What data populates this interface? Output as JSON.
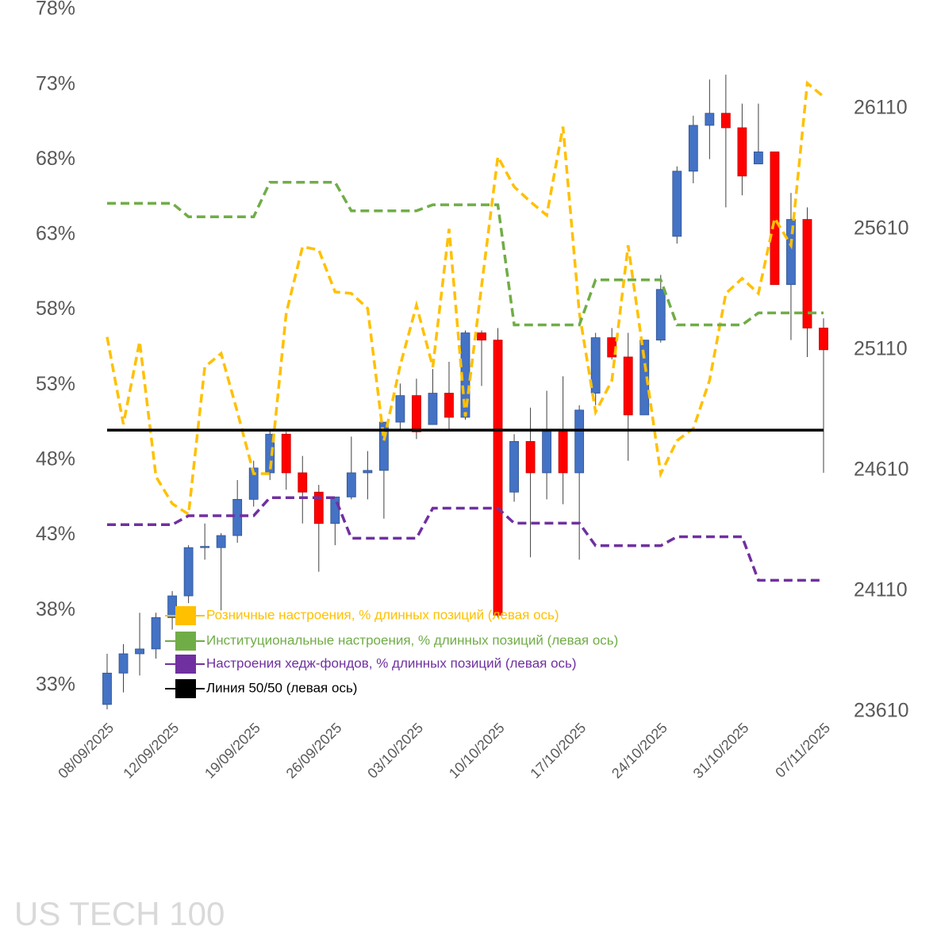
{
  "chart_data": {
    "type": "candlestick",
    "watermark": "US TECH 100",
    "categories": [
      "08/09/2025",
      null,
      null,
      null,
      "12/09/2025",
      null,
      null,
      null,
      null,
      "19/09/2025",
      null,
      null,
      null,
      null,
      "26/09/2025",
      null,
      null,
      null,
      null,
      "03/10/2025",
      null,
      null,
      null,
      null,
      "10/10/2025",
      null,
      null,
      null,
      null,
      "17/10/2025",
      null,
      null,
      null,
      null,
      "24/10/2025",
      null,
      null,
      null,
      null,
      "31/10/2025",
      null,
      null,
      null,
      null,
      "07/11/2025"
    ],
    "ylim": [
      31.25,
      78
    ],
    "yticks": [
      {
        "value": 33,
        "label": "33%"
      },
      {
        "value": 38,
        "label": "38%"
      },
      {
        "value": 43,
        "label": "43%"
      },
      {
        "value": 48,
        "label": "48%"
      },
      {
        "value": 53,
        "label": "53%"
      },
      {
        "value": 58,
        "label": "58%"
      },
      {
        "value": 63,
        "label": "63%"
      },
      {
        "value": 68,
        "label": "68%"
      },
      {
        "value": 73,
        "label": "73%"
      },
      {
        "value": 78,
        "label": "78%"
      }
    ],
    "y2lim": [
      23610,
      26520
    ],
    "y2ticks": [
      23610,
      24110,
      24610,
      25110,
      25610,
      26110
    ],
    "series": [
      {
        "name": "Розничные настроения, % длинных позиций (левая ось)",
        "color": "#ffc000",
        "dashed": true,
        "values": [
          56.2,
          50.4,
          55.9,
          46.9,
          45.1,
          44.4,
          54.2,
          55.1,
          51.2,
          47.1,
          47.1,
          57.8,
          62.2,
          62.0,
          59.2,
          59.1,
          58.1,
          49.3,
          54.3,
          58.3,
          54.2,
          63.4,
          50.9,
          59.6,
          68.2,
          66.2,
          65.2,
          64.3,
          70.2,
          57.8,
          51.2,
          53.3,
          62.3,
          54.6,
          47.1,
          49.3,
          50.1,
          53.3,
          59.1,
          60.1,
          59.1,
          64.1,
          62.3,
          73.1,
          72.2
        ]
      },
      {
        "name": "Институциональные настроения, % длинных позиций (левая ось)",
        "color": "#70ad47",
        "dashed": true,
        "values": [
          65.1,
          65.1,
          65.1,
          65.1,
          65.1,
          64.2,
          64.2,
          64.2,
          64.2,
          64.2,
          66.5,
          66.5,
          66.5,
          66.5,
          66.5,
          64.6,
          64.6,
          64.6,
          64.6,
          64.6,
          65.0,
          65.0,
          65.0,
          65.0,
          65.0,
          57.0,
          57.0,
          57.0,
          57.0,
          57.0,
          60.0,
          60.0,
          60.0,
          60.0,
          60.0,
          57.0,
          57.0,
          57.0,
          57.0,
          57.0,
          57.8,
          57.8,
          57.8,
          57.8,
          57.8
        ]
      },
      {
        "name": "Настроения хедж-фондов, % длинных позиций (левая ось)",
        "color": "#7030a0",
        "dashed": true,
        "values": [
          43.7,
          43.7,
          43.7,
          43.7,
          43.7,
          44.3,
          44.3,
          44.3,
          44.3,
          44.3,
          45.5,
          45.5,
          45.5,
          45.5,
          45.5,
          42.8,
          42.8,
          42.8,
          42.8,
          42.8,
          44.8,
          44.8,
          44.8,
          44.8,
          44.8,
          43.8,
          43.8,
          43.8,
          43.8,
          43.8,
          42.3,
          42.3,
          42.3,
          42.3,
          42.3,
          42.9,
          42.9,
          42.9,
          42.9,
          42.9,
          40.0,
          40.0,
          40.0,
          40.0,
          40.0
        ]
      },
      {
        "name": "Линия 50/50 (левая ось)",
        "color": "#000000",
        "dashed": false,
        "values": [
          50,
          50,
          50,
          50,
          50,
          50,
          50,
          50,
          50,
          50,
          50,
          50,
          50,
          50,
          50,
          50,
          50,
          50,
          50,
          50,
          50,
          50,
          50,
          50,
          50,
          50,
          50,
          50,
          50,
          50,
          50,
          50,
          50,
          50,
          50,
          50,
          50,
          50,
          50,
          50,
          50,
          50,
          50,
          50,
          50
        ]
      }
    ],
    "ohlc": {
      "axis": "y2",
      "up_color": "#4472c4",
      "down_color": "#ff0000",
      "open": [
        23640,
        23770,
        23850,
        23870,
        24000,
        24090,
        24290,
        24290,
        24340,
        24490,
        24600,
        24760,
        24600,
        24520,
        24390,
        24500,
        24600,
        24610,
        24810,
        24920,
        24800,
        24930,
        24830,
        25180,
        25150,
        24520,
        24730,
        24600,
        24770,
        24600,
        24930,
        25160,
        25080,
        24840,
        25150,
        25580,
        25850,
        26040,
        26090,
        26030,
        25880,
        25930,
        25380,
        25650,
        25200
      ],
      "high": [
        23850,
        23890,
        24020,
        24020,
        24110,
        24300,
        24390,
        24350,
        24570,
        24650,
        24780,
        24770,
        24670,
        24550,
        24500,
        24750,
        24690,
        24810,
        24970,
        24990,
        25030,
        25060,
        25190,
        25190,
        25200,
        24760,
        24870,
        24940,
        25000,
        24880,
        25180,
        25200,
        25180,
        25150,
        25420,
        25870,
        26080,
        26230,
        26250,
        26130,
        26130,
        25930,
        25760,
        25700,
        25240
      ],
      "low": [
        23620,
        23690,
        23760,
        23830,
        23950,
        24060,
        24240,
        24030,
        24310,
        24460,
        24570,
        24530,
        24390,
        24190,
        24300,
        24490,
        24490,
        24410,
        24780,
        24740,
        24800,
        24780,
        24820,
        24960,
        24000,
        24480,
        24250,
        24490,
        24470,
        24240,
        24880,
        25070,
        24650,
        24840,
        25140,
        25550,
        25800,
        25900,
        25700,
        25750,
        25880,
        25380,
        25150,
        25080,
        24600
      ],
      "close": [
        23770,
        23850,
        23870,
        24000,
        24090,
        24290,
        24295,
        24340,
        24490,
        24620,
        24760,
        24600,
        24520,
        24390,
        24500,
        24600,
        24610,
        24810,
        24920,
        24770,
        24930,
        24830,
        25180,
        25150,
        24010,
        24730,
        24600,
        24770,
        24600,
        24860,
        25160,
        25080,
        24840,
        25150,
        25360,
        25850,
        26040,
        26090,
        26030,
        25830,
        25930,
        25380,
        25650,
        25200,
        25110
      ]
    }
  }
}
